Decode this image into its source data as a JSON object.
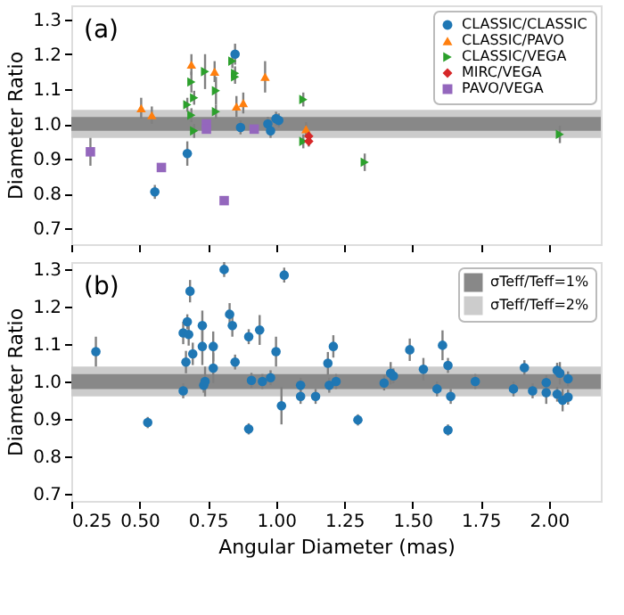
{
  "chart_data": [
    {
      "type": "scatter",
      "ylabel": "Diameter Ratio",
      "annotations": [
        "(a)"
      ],
      "xlim": [
        0.25,
        2.19
      ],
      "xticks": [
        0.25,
        0.5,
        0.75,
        1.0,
        1.25,
        1.5,
        1.75,
        2.0
      ],
      "ylim": [
        0.655,
        1.34
      ],
      "yticks": [
        0.7,
        0.8,
        0.9,
        {
          "value": 1.0,
          "label": "1.0"
        },
        1.1,
        1.2,
        1.3
      ],
      "tick_labels": "y",
      "grid": false,
      "legend": "top right",
      "bands": [
        {
          "axis": "y",
          "from": 0.98,
          "to": 1.02,
          "color": "#888888"
        },
        {
          "axis": "y",
          "from": 0.96,
          "to": 1.04,
          "color": "#cccccc"
        }
      ],
      "series": [
        {
          "name": "CLASSIC/CLASSIC",
          "color": "#1f77b4",
          "marker": "circle",
          "x": [
            0.85,
            0.675,
            0.556,
            0.87,
            0.97,
            0.98,
            1.0,
            1.01
          ],
          "values": [
            1.2,
            0.915,
            0.805,
            0.99,
            1.0,
            0.98,
            1.015,
            1.01
          ],
          "errors": [
            0.03,
            0.035,
            0.02,
            0.02,
            0.02,
            0.02,
            0.02,
            0.02
          ]
        },
        {
          "name": "CLASSIC/PAVO",
          "color": "#ff7f0e",
          "marker": "triangle",
          "x": [
            0.506,
            0.545,
            0.69,
            0.775,
            0.855,
            0.88,
            0.96,
            1.11
          ],
          "values": [
            1.045,
            1.025,
            1.17,
            1.15,
            1.05,
            1.06,
            1.135,
            0.985
          ],
          "errors": [
            0.03,
            0.025,
            0.03,
            0.03,
            0.03,
            0.03,
            0.045,
            0.02
          ]
        },
        {
          "name": "CLASSIC/VEGA",
          "color": "#2ca02c",
          "marker": "triangle-right",
          "x": [
            0.675,
            0.69,
            0.69,
            0.7,
            0.7,
            0.74,
            0.78,
            0.78,
            0.84,
            0.85,
            0.85,
            1.1,
            1.1,
            1.325,
            2.04
          ],
          "values": [
            1.055,
            1.12,
            1.025,
            0.98,
            1.075,
            1.15,
            1.095,
            1.035,
            1.18,
            1.145,
            1.135,
            1.07,
            0.95,
            0.89,
            0.97
          ],
          "errors": [
            0.02,
            0.03,
            0.02,
            0.02,
            0.02,
            0.05,
            0.04,
            0.02,
            0.02,
            0.02,
            0.02,
            0.02,
            0.02,
            0.025,
            0.025
          ]
        },
        {
          "name": "MIRC/VEGA",
          "color": "#d62728",
          "marker": "diamond",
          "x": [
            1.12,
            1.12
          ],
          "values": [
            0.965,
            0.95
          ],
          "errors": [
            0.015,
            0.015
          ]
        },
        {
          "name": "PAVO/VEGA",
          "color": "#9467bd",
          "marker": "square",
          "x": [
            0.32,
            0.58,
            0.745,
            0.745,
            0.81,
            0.92
          ],
          "values": [
            0.92,
            0.875,
            1.0,
            0.985,
            0.78,
            0.985
          ],
          "errors": [
            0.04,
            null,
            null,
            null,
            null,
            null
          ]
        }
      ]
    },
    {
      "type": "scatter",
      "xlabel": "Angular Diameter (mas)",
      "ylabel": "Diameter Ratio",
      "annotations": [
        "(b)"
      ],
      "xlim": [
        0.25,
        2.19
      ],
      "xticks": [
        0.25,
        {
          "value": 0.5,
          "label": "0.50"
        },
        0.75,
        {
          "value": 1.0,
          "label": "1.00"
        },
        1.25,
        {
          "value": 1.5,
          "label": "1.50"
        },
        1.75,
        {
          "value": 2.0,
          "label": "2.00"
        }
      ],
      "ylim": [
        0.68,
        1.32
      ],
      "yticks": [
        0.7,
        0.8,
        0.9,
        {
          "value": 1.0,
          "label": "1.0"
        },
        1.1,
        1.2,
        1.3
      ],
      "grid": false,
      "legend": "top right",
      "bands": [
        {
          "axis": "y",
          "from": 0.98,
          "to": 1.02,
          "color": "#888888",
          "label": "σTeff/Teff=1%"
        },
        {
          "axis": "y",
          "from": 0.96,
          "to": 1.04,
          "color": "#cccccc",
          "label": "σTeff/Teff=2%"
        }
      ],
      "series": [
        {
          "color": "#1f77b4",
          "marker": "circle",
          "x": [
            0.34,
            0.53,
            0.66,
            0.66,
            0.67,
            0.675,
            0.68,
            0.685,
            0.695,
            0.73,
            0.73,
            0.735,
            0.74,
            0.77,
            0.77,
            0.81,
            0.83,
            0.84,
            0.85,
            0.9,
            0.9,
            0.91,
            0.94,
            0.95,
            0.98,
            1.0,
            1.02,
            1.03,
            1.09,
            1.09,
            1.145,
            1.19,
            1.195,
            1.21,
            1.22,
            1.3,
            1.396,
            1.42,
            1.43,
            1.49,
            1.54,
            1.59,
            1.61,
            1.63,
            1.64,
            1.63,
            1.73,
            1.87,
            1.91,
            1.94,
            1.99,
            1.99,
            2.03,
            2.03,
            2.04,
            2.05,
            2.07,
            2.07
          ],
          "values": [
            1.08,
            0.89,
            1.13,
            0.975,
            1.052,
            1.16,
            1.126,
            1.242,
            1.074,
            1.15,
            1.094,
            0.99,
            1.0,
            1.036,
            1.094,
            1.3,
            1.18,
            1.15,
            1.052,
            1.12,
            0.873,
            1.003,
            1.138,
            1.0,
            1.01,
            1.08,
            0.935,
            1.285,
            0.96,
            0.99,
            0.96,
            1.049,
            0.99,
            1.094,
            1.0,
            0.897,
            0.996,
            1.022,
            1.015,
            1.085,
            1.033,
            0.98,
            1.097,
            1.043,
            0.96,
            0.87,
            1.0,
            0.98,
            1.037,
            0.975,
            0.997,
            0.97,
            0.966,
            1.03,
            1.022,
            0.95,
            1.007,
            0.958
          ],
          "errors": [
            0.04,
            0.015,
            0.03,
            0.02,
            0.03,
            0.02,
            0.03,
            0.03,
            0.03,
            0.04,
            0.05,
            0.02,
            0.04,
            0.04,
            0.04,
            0.02,
            0.03,
            0.03,
            0.02,
            0.02,
            0.015,
            0.02,
            0.04,
            0.02,
            0.02,
            0.04,
            0.05,
            0.02,
            0.02,
            0.02,
            0.02,
            0.03,
            0.02,
            0.03,
            0.02,
            0.015,
            0.02,
            0.03,
            0.02,
            0.03,
            0.03,
            0.02,
            0.04,
            0.02,
            0.02,
            0.015,
            0.02,
            0.02,
            0.02,
            0.02,
            0.02,
            0.03,
            0.02,
            0.02,
            0.03,
            0.03,
            0.02,
            0.02
          ]
        }
      ]
    }
  ]
}
